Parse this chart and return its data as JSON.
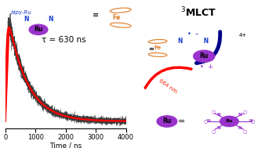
{
  "tau_ns": 630,
  "t_max": 4000,
  "noise_amplitude": 0.055,
  "noise_seed": 42,
  "rise_tc": 45,
  "decay_color": "#FF0000",
  "noise_color": "#1a1a1a",
  "xlabel": "Time / ns",
  "tau_label": "τ = 630 ns",
  "mlct_label": "$^3$MLCT",
  "xlim": [
    0,
    4000
  ],
  "ylim": [
    -0.08,
    1.15
  ],
  "xticks": [
    0,
    1000,
    2000,
    3000,
    4000
  ],
  "figure_width": 3.38,
  "figure_height": 1.89,
  "dpi": 100,
  "background_color": "#ffffff",
  "blue_color": "#1a3fcc",
  "orange_color": "#e07820",
  "purple_color": "#9933cc",
  "dark_blue": "#000080"
}
